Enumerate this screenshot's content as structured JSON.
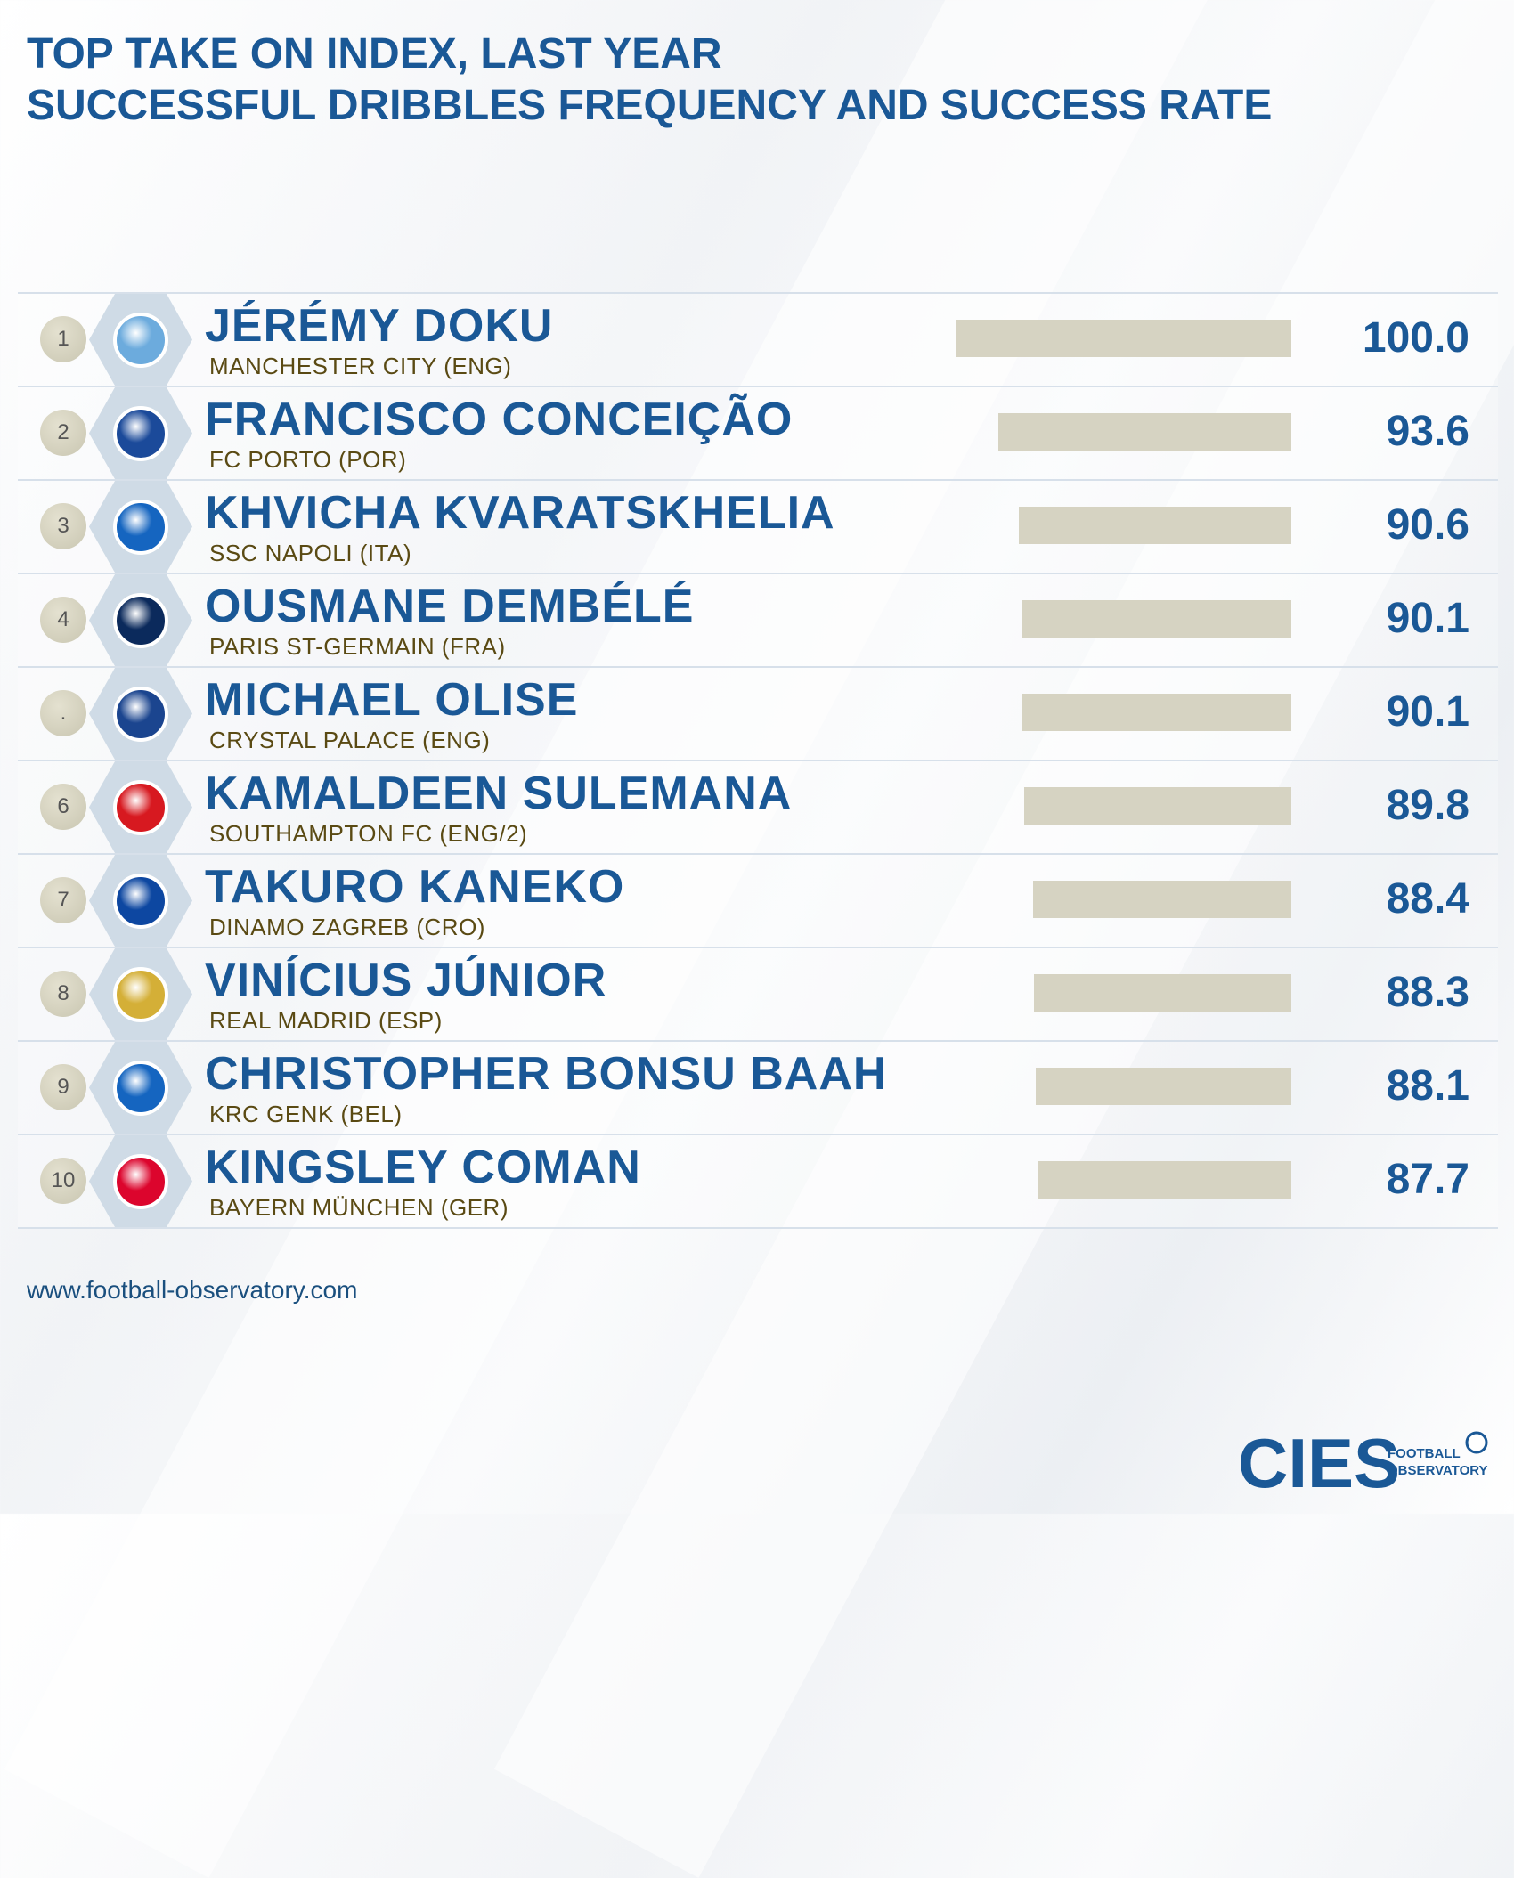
{
  "title": {
    "line1": "TOP TAKE ON INDEX, LAST YEAR",
    "line2": "SUCCESSFUL DRIBBLES FREQUENCY AND SUCCESS RATE"
  },
  "chart_data": {
    "type": "bar",
    "title": "TOP TAKE ON INDEX, LAST YEAR",
    "subtitle": "SUCCESSFUL DRIBBLES FREQUENCY AND SUCCESS RATE",
    "xlim": [
      0,
      100
    ],
    "rows": [
      {
        "rank": "1",
        "player": "JÉRÉMY DOKU",
        "club": "MANCHESTER CITY (ENG)",
        "value": 100.0,
        "label": "100.0",
        "badge_color": "#6cabdd",
        "badge_icon": "manchester-city-crest-icon"
      },
      {
        "rank": "2",
        "player": "FRANCISCO CONCEIÇÃO",
        "club": "FC PORTO (POR)",
        "value": 93.6,
        "label": "93.6",
        "badge_color": "#1b4a9a",
        "badge_icon": "fc-porto-crest-icon"
      },
      {
        "rank": "3",
        "player": "KHVICHA KVARATSKHELIA",
        "club": "SSC NAPOLI (ITA)",
        "value": 90.6,
        "label": "90.6",
        "badge_color": "#1565c0",
        "badge_icon": "napoli-crest-icon"
      },
      {
        "rank": "4",
        "player": "OUSMANE DEMBÉLÉ",
        "club": "PARIS ST-GERMAIN (FRA)",
        "value": 90.1,
        "label": "90.1",
        "badge_color": "#0b2a5c",
        "badge_icon": "psg-crest-icon"
      },
      {
        "rank": ".",
        "player": "MICHAEL OLISE",
        "club": "CRYSTAL PALACE (ENG)",
        "value": 90.1,
        "label": "90.1",
        "badge_color": "#1b458f",
        "badge_icon": "crystal-palace-crest-icon"
      },
      {
        "rank": "6",
        "player": "KAMALDEEN SULEMANA",
        "club": "SOUTHAMPTON FC (ENG/2)",
        "value": 89.8,
        "label": "89.8",
        "badge_color": "#d71920",
        "badge_icon": "southampton-crest-icon"
      },
      {
        "rank": "7",
        "player": "TAKURO KANEKO",
        "club": "DINAMO ZAGREB (CRO)",
        "value": 88.4,
        "label": "88.4",
        "badge_color": "#0d47a1",
        "badge_icon": "dinamo-zagreb-crest-icon"
      },
      {
        "rank": "8",
        "player": "VINÍCIUS JÚNIOR",
        "club": "REAL MADRID (ESP)",
        "value": 88.3,
        "label": "88.3",
        "badge_color": "#d4af37",
        "badge_icon": "real-madrid-crest-icon"
      },
      {
        "rank": "9",
        "player": "CHRISTOPHER BONSU BAAH",
        "club": "KRC GENK (BEL)",
        "value": 88.1,
        "label": "88.1",
        "badge_color": "#1565c0",
        "badge_icon": "genk-crest-icon"
      },
      {
        "rank": "10",
        "player": "KINGSLEY COMAN",
        "club": "BAYERN MÜNCHEN (GER)",
        "value": 87.7,
        "label": "87.7",
        "badge_color": "#dc052d",
        "badge_icon": "bayern-crest-icon"
      }
    ]
  },
  "source": "www.football-observatory.com",
  "logo": {
    "brand": "CIES",
    "line1": "FOOTBALL",
    "line2": "OBSERVATORY",
    "color": "#1a5896"
  }
}
